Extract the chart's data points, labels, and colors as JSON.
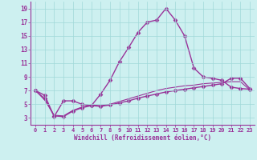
{
  "title": "",
  "xlabel": "Windchill (Refroidissement éolien,°C)",
  "ylabel": "",
  "background_color": "#cdf0f0",
  "grid_color": "#a0d8d8",
  "line_color": "#993399",
  "xlim": [
    -0.5,
    23.5
  ],
  "ylim": [
    2,
    20
  ],
  "yticks": [
    3,
    5,
    7,
    9,
    11,
    13,
    15,
    17,
    19
  ],
  "xticks": [
    0,
    1,
    2,
    3,
    4,
    5,
    6,
    7,
    8,
    9,
    10,
    11,
    12,
    13,
    14,
    15,
    16,
    17,
    18,
    19,
    20,
    21,
    22,
    23
  ],
  "xtick_labels": [
    "0",
    "1",
    "2",
    "3",
    "4",
    "5",
    "6",
    "7",
    "8",
    "9",
    "10",
    "11",
    "12",
    "13",
    "14",
    "15",
    "16",
    "17",
    "18",
    "19",
    "20",
    "21",
    "22",
    "23"
  ],
  "series": [
    {
      "x": [
        0,
        1,
        2,
        3,
        4,
        5,
        6,
        7,
        8,
        9,
        10,
        11,
        12,
        13,
        14,
        15,
        16,
        17,
        18,
        19,
        20,
        21,
        22,
        23
      ],
      "y": [
        7.0,
        6.3,
        3.2,
        5.5,
        5.5,
        5.0,
        4.8,
        6.5,
        8.5,
        11.2,
        13.3,
        15.5,
        17.0,
        17.3,
        19.0,
        17.3,
        15.0,
        10.3,
        9.0,
        8.8,
        8.5,
        7.5,
        7.3,
        7.2
      ],
      "marker": "D",
      "markersize": 2.5,
      "linewidth": 1.0,
      "with_marker": true
    },
    {
      "x": [
        0,
        1,
        2,
        3,
        4,
        5,
        6,
        7,
        8,
        9,
        10,
        11,
        12,
        13,
        14,
        15,
        16,
        17,
        18,
        19,
        20,
        21,
        22,
        23
      ],
      "y": [
        7.0,
        5.8,
        3.3,
        3.2,
        4.0,
        4.5,
        4.8,
        4.7,
        4.9,
        5.2,
        5.5,
        5.9,
        6.2,
        6.5,
        6.8,
        7.0,
        7.2,
        7.4,
        7.6,
        7.8,
        8.0,
        8.8,
        8.8,
        7.3
      ],
      "marker": "D",
      "markersize": 2.5,
      "linewidth": 1.0,
      "with_marker": true
    },
    {
      "x": [
        0,
        1,
        2,
        3,
        4,
        5,
        6,
        7,
        8,
        9,
        10,
        11,
        12,
        13,
        14,
        15,
        16,
        17,
        18,
        19,
        20,
        21,
        22,
        23
      ],
      "y": [
        7.0,
        5.6,
        3.4,
        3.3,
        4.1,
        4.6,
        4.9,
        4.8,
        5.0,
        5.4,
        5.8,
        6.2,
        6.6,
        7.0,
        7.3,
        7.5,
        7.7,
        7.8,
        8.0,
        8.1,
        8.2,
        8.3,
        8.3,
        7.1
      ],
      "marker": null,
      "markersize": 0,
      "linewidth": 0.8,
      "with_marker": false
    }
  ]
}
